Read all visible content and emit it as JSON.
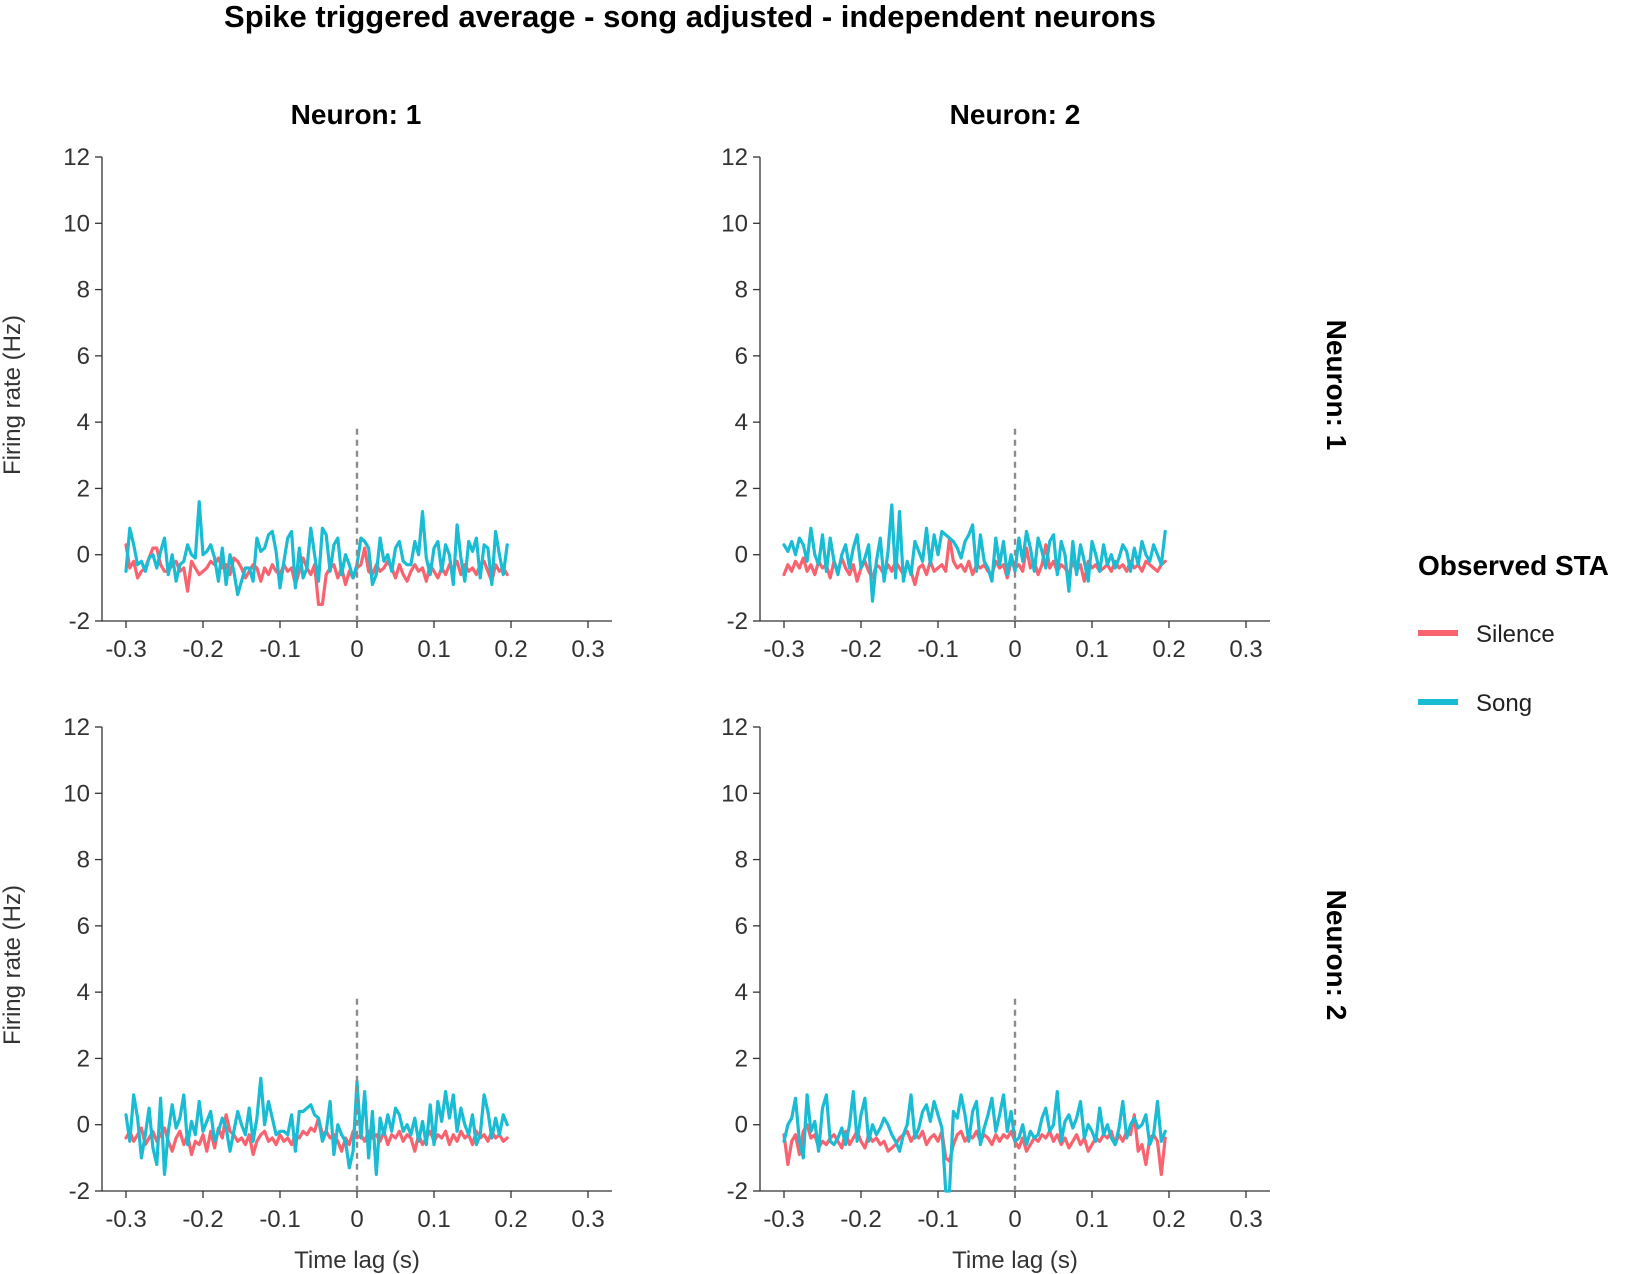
{
  "title": "Spike triggered average - song adjusted - independent neurons",
  "column_titles": [
    "Neuron: 1",
    "Neuron: 2"
  ],
  "row_strips": [
    "Neuron: 1",
    "Neuron: 2"
  ],
  "x_axis_label": "Time lag (s)",
  "y_axis_label": "Firing rate (Hz)",
  "x_tick_labels": [
    "-0.3",
    "-0.2",
    "-0.1",
    "0",
    "0.1",
    "0.2",
    "0.3"
  ],
  "y_tick_labels": [
    "-2",
    "0",
    "2",
    "4",
    "6",
    "8",
    "10",
    "12"
  ],
  "legend": {
    "title": "Observed STA",
    "items": [
      {
        "label": "Silence",
        "color": "#f8636f"
      },
      {
        "label": "Song",
        "color": "#19bcd3"
      }
    ]
  },
  "chart_data": {
    "type": "line",
    "layout": "2x2 facet grid",
    "xlim": [
      -0.3,
      0.3
    ],
    "ylim": [
      -2,
      12
    ],
    "x_ticks": [
      -0.3,
      -0.2,
      -0.1,
      0,
      0.1,
      0.2,
      0.3
    ],
    "y_ticks": [
      -2,
      0,
      2,
      4,
      6,
      8,
      10,
      12
    ],
    "reference_line": {
      "x": 0,
      "y_range": [
        -2,
        3.8
      ],
      "style": "dashed",
      "color": "#8c8c8c"
    },
    "grid": false,
    "legend_position": "right",
    "x_step": 0.005,
    "x_start": -0.3,
    "panels": [
      {
        "row": "Neuron: 1",
        "column": "Neuron: 1",
        "series": [
          {
            "name": "Silence",
            "color": "#f8636f",
            "values": [
              0.3,
              -0.4,
              -0.2,
              -0.7,
              -0.5,
              -0.4,
              -0.1,
              0.2,
              0.2,
              -0.3,
              -0.5,
              -0.5,
              -0.3,
              -0.2,
              -0.5,
              -0.4,
              -1.1,
              -0.2,
              -0.4,
              -0.6,
              -0.5,
              -0.4,
              -0.2,
              -0.3,
              -0.1,
              -0.4,
              -0.3,
              -0.6,
              -0.1,
              -0.2,
              -0.4,
              -0.7,
              -0.5,
              -0.3,
              -0.4,
              -0.8,
              -0.4,
              -0.6,
              -0.3,
              -0.5,
              -0.6,
              -0.3,
              -0.5,
              -0.4,
              -0.9,
              -0.5,
              -0.1,
              -0.4,
              -0.6,
              -0.3,
              -1.5,
              -1.5,
              -0.6,
              -0.4,
              -0.3,
              -0.7,
              -0.4,
              -0.9,
              -0.5,
              -0.7,
              -0.4,
              -0.3,
              0.2,
              -0.5,
              -0.6,
              -0.3,
              -0.5,
              -0.4,
              -0.2,
              -0.4,
              -0.7,
              -0.3,
              -0.6,
              -0.8,
              -0.5,
              -0.3,
              -0.5,
              -0.4,
              -0.8,
              -0.3,
              -0.5,
              -0.7,
              -0.4,
              -0.6,
              -0.3,
              -0.4,
              -0.2,
              -0.6,
              -0.3,
              -0.5,
              -0.4,
              -0.6,
              -0.3,
              -0.2,
              -0.5,
              -0.8,
              -0.3,
              -0.5,
              -0.4,
              -0.6
            ]
          },
          {
            "name": "Song",
            "color": "#19bcd3",
            "values": [
              -0.5,
              0.8,
              0.3,
              -0.3,
              -0.2,
              -0.5,
              -0.1,
              0.0,
              -0.4,
              0.1,
              0.5,
              -0.6,
              0.0,
              -0.8,
              -0.3,
              -0.2,
              0.3,
              0.0,
              -0.1,
              1.6,
              0.0,
              0.1,
              0.3,
              -0.1,
              -0.8,
              0.2,
              -0.9,
              0.0,
              -0.5,
              -1.2,
              -0.8,
              -0.4,
              -0.4,
              -0.8,
              0.5,
              0.1,
              0.2,
              0.6,
              0.7,
              0.1,
              -1.0,
              -0.2,
              0.5,
              0.7,
              -1.0,
              0.2,
              -0.7,
              -0.4,
              0.8,
              0.0,
              -0.8,
              0.8,
              0.6,
              -0.5,
              0.3,
              0.5,
              -0.6,
              0.0,
              -0.3,
              -0.7,
              -0.3,
              0.5,
              0.4,
              0.2,
              -0.9,
              -0.6,
              0.5,
              -0.2,
              0.0,
              -0.5,
              0.2,
              0.4,
              -0.2,
              -0.3,
              -0.3,
              0.4,
              0.0,
              1.3,
              -0.1,
              -0.6,
              0.2,
              0.4,
              -0.5,
              0.3,
              0.0,
              -0.9,
              0.9,
              -0.1,
              -0.8,
              0.4,
              0.1,
              0.5,
              -0.7,
              0.3,
              0.2,
              -0.9,
              0.7,
              0.0,
              -0.6,
              0.3
            ]
          }
        ]
      },
      {
        "row": "Neuron: 1",
        "column": "Neuron: 2",
        "series": [
          {
            "name": "Silence",
            "color": "#f8636f",
            "values": [
              -0.6,
              -0.3,
              -0.5,
              -0.2,
              -0.4,
              -0.1,
              -0.5,
              -0.3,
              -0.6,
              -0.2,
              -0.4,
              -0.3,
              -0.7,
              -0.2,
              -0.5,
              -0.1,
              -0.4,
              -0.6,
              -0.3,
              -0.8,
              -0.4,
              -0.2,
              -0.5,
              -0.7,
              -0.3,
              -0.4,
              -0.6,
              -0.3,
              -0.5,
              -0.2,
              -0.4,
              -0.6,
              -0.3,
              -0.5,
              -0.9,
              -0.4,
              -0.3,
              -0.6,
              -0.2,
              -0.5,
              -0.4,
              -0.3,
              -0.5,
              0.5,
              -0.2,
              -0.4,
              -0.3,
              -0.5,
              -0.2,
              -0.6,
              -0.3,
              -0.4,
              -0.3,
              -0.5,
              -0.6,
              -0.2,
              -0.4,
              -0.3,
              -0.7,
              -0.2,
              -0.4,
              -0.3,
              -0.5,
              0.2,
              -0.4,
              -0.2,
              -0.6,
              -0.3,
              0.3,
              -0.4,
              -0.2,
              -0.5,
              -0.3,
              -0.4,
              -0.6,
              -0.2,
              -0.5,
              -0.3,
              -0.8,
              -0.2,
              -0.4,
              -0.3,
              -0.5,
              -0.4,
              -0.3,
              -0.5,
              -0.2,
              -0.4,
              -0.3,
              -0.5,
              -0.2,
              -0.4,
              -0.3,
              -0.5,
              -0.2,
              -0.3,
              -0.4,
              -0.5,
              -0.3,
              -0.2
            ]
          },
          {
            "name": "Song",
            "color": "#19bcd3",
            "values": [
              0.3,
              0.1,
              0.4,
              0.0,
              0.5,
              0.3,
              -0.2,
              0.8,
              0.0,
              -0.3,
              0.6,
              -0.5,
              0.5,
              -0.2,
              -0.6,
              0.0,
              0.3,
              -0.4,
              0.2,
              0.6,
              -0.4,
              -0.1,
              0.3,
              -1.4,
              -0.2,
              0.5,
              -0.8,
              0.1,
              1.5,
              -0.7,
              1.3,
              -0.8,
              -0.2,
              -0.6,
              0.4,
              0.1,
              -0.2,
              0.8,
              -0.3,
              0.6,
              0.0,
              0.7,
              0.6,
              0.5,
              0.4,
              0.2,
              -0.1,
              0.4,
              0.6,
              0.9,
              -0.5,
              0.6,
              -0.2,
              -0.4,
              -0.8,
              0.5,
              -0.3,
              0.4,
              -0.6,
              0.0,
              -0.5,
              0.5,
              -0.2,
              0.7,
              0.2,
              -0.5,
              0.5,
              0.1,
              -0.4,
              0.4,
              0.6,
              -0.6,
              0.4,
              0.0,
              -1.1,
              0.4,
              -0.6,
              0.3,
              -0.2,
              -0.8,
              0.4,
              0.0,
              -0.5,
              0.3,
              -0.3,
              0.0,
              -0.4,
              -0.1,
              0.3,
              0.1,
              -0.5,
              0.2,
              -0.3,
              0.4,
              0.0,
              -0.2,
              0.3,
              0.0,
              -0.3,
              0.7
            ]
          }
        ]
      },
      {
        "row": "Neuron: 2",
        "column": "Neuron: 1",
        "series": [
          {
            "name": "Silence",
            "color": "#f8636f",
            "values": [
              -0.4,
              -0.2,
              -0.5,
              -0.3,
              -0.1,
              -0.6,
              -0.4,
              -0.2,
              -0.5,
              -0.3,
              -0.1,
              -0.5,
              -0.8,
              -0.4,
              -0.2,
              -0.6,
              -0.3,
              -0.9,
              -0.5,
              -0.6,
              -0.3,
              -0.8,
              -0.2,
              -0.7,
              -0.1,
              -0.4,
              0.3,
              -0.2,
              -0.3,
              -0.5,
              -0.4,
              -0.6,
              -0.3,
              -0.9,
              -0.5,
              -0.3,
              -0.2,
              -0.5,
              -0.4,
              -0.6,
              -0.3,
              -0.5,
              -0.4,
              -0.6,
              -0.3,
              -0.4,
              -0.2,
              -0.3,
              -0.1,
              -0.2,
              0.2,
              -0.3,
              -0.2,
              -0.4,
              -0.3,
              -0.5,
              -0.8,
              -0.4,
              -0.6,
              -0.2,
              -0.4,
              -0.3,
              -0.5,
              -0.2,
              -0.4,
              -0.3,
              -0.5,
              -0.2,
              -0.6,
              -0.3,
              -0.4,
              -0.2,
              -0.5,
              -0.3,
              -0.4,
              -0.8,
              -0.3,
              -0.6,
              -0.4,
              -0.2,
              -0.5,
              -0.3,
              -0.4,
              -0.2,
              -0.6,
              -0.3,
              -0.5,
              -0.2,
              -0.4,
              -0.3,
              -0.6,
              -0.2,
              -0.4,
              -0.3,
              -0.5,
              -0.2,
              -0.4,
              -0.3,
              -0.5,
              -0.4
            ]
          },
          {
            "name": "Song",
            "color": "#19bcd3",
            "values": [
              0.3,
              -0.5,
              0.9,
              0.2,
              -1.0,
              -0.3,
              0.5,
              -0.7,
              -1.2,
              0.8,
              -1.5,
              -0.2,
              0.6,
              -0.1,
              0.2,
              0.9,
              -0.6,
              0.1,
              -0.3,
              0.7,
              -0.2,
              0.1,
              0.4,
              -0.5,
              -0.2,
              0.2,
              -0.1,
              -0.8,
              -0.2,
              0.4,
              0.0,
              -0.3,
              0.5,
              -0.5,
              0.2,
              1.4,
              0.0,
              0.7,
              0.2,
              -0.3,
              -0.2,
              -0.2,
              -0.3,
              0.3,
              -0.8,
              0.4,
              0.4,
              0.5,
              0.6,
              0.3,
              0.2,
              -0.5,
              -0.2,
              0.7,
              -0.9,
              0.0,
              -0.3,
              -0.5,
              -1.3,
              -0.8,
              1.3,
              -0.4,
              1.0,
              -1.0,
              0.4,
              -1.5,
              0.2,
              -0.3,
              0.3,
              -0.2,
              0.5,
              0.3,
              -0.2,
              0.0,
              -0.3,
              0.2,
              -0.5,
              0.1,
              -0.6,
              0.6,
              -0.6,
              0.7,
              0.1,
              1.0,
              0.2,
              0.9,
              -0.2,
              0.5,
              0.0,
              -0.3,
              0.3,
              -0.6,
              -0.3,
              0.9,
              0.4,
              -0.4,
              0.2,
              -0.3,
              0.3,
              0.0
            ]
          }
        ]
      },
      {
        "row": "Neuron: 2",
        "column": "Neuron: 2",
        "series": [
          {
            "name": "Silence",
            "color": "#f8636f",
            "values": [
              -0.3,
              -1.2,
              -0.5,
              -0.3,
              -0.9,
              -0.2,
              0.0,
              -0.4,
              -0.3,
              -0.7,
              -0.5,
              -0.6,
              -0.4,
              -0.3,
              -0.5,
              -0.7,
              -0.2,
              -0.6,
              -0.4,
              -0.2,
              -0.5,
              -0.7,
              -0.3,
              -0.5,
              -0.4,
              -0.6,
              -0.5,
              -0.8,
              -0.7,
              -0.6,
              -0.4,
              -0.3,
              -0.2,
              -0.5,
              -0.3,
              -0.4,
              -0.2,
              -0.6,
              -0.4,
              -0.3,
              -0.5,
              -0.2,
              -1.0,
              -1.1,
              -0.6,
              -0.3,
              -0.2,
              -0.5,
              -0.3,
              -0.4,
              -0.2,
              -0.5,
              -0.3,
              -0.4,
              -0.6,
              -0.3,
              -0.5,
              -0.3,
              -0.4,
              -0.2,
              -0.5,
              -0.7,
              -0.4,
              -0.8,
              -0.6,
              -0.4,
              -0.5,
              -0.3,
              -0.4,
              -0.2,
              -0.5,
              -0.3,
              -0.6,
              -0.4,
              -0.7,
              -0.5,
              -0.3,
              -0.6,
              -0.4,
              -0.8,
              -0.6,
              -0.4,
              -0.5,
              -0.3,
              -0.4,
              -0.2,
              -0.6,
              -0.3,
              -0.5,
              -0.2,
              -0.3,
              0.3,
              -0.8,
              -0.6,
              -1.2,
              -0.4,
              -0.3,
              -0.5,
              -1.5,
              -0.4
            ]
          },
          {
            "name": "Song",
            "color": "#19bcd3",
            "values": [
              -0.5,
              0.0,
              0.2,
              0.8,
              -0.5,
              -1.0,
              0.9,
              -0.2,
              0.1,
              -0.8,
              0.5,
              0.9,
              -0.5,
              -0.6,
              -0.4,
              -0.1,
              -0.6,
              0.0,
              1.0,
              -0.5,
              0.3,
              0.8,
              -0.5,
              0.0,
              -0.3,
              -0.1,
              0.2,
              0.0,
              -0.3,
              -0.5,
              -0.8,
              -0.3,
              0.0,
              0.9,
              -0.4,
              -0.1,
              0.4,
              0.6,
              0.1,
              0.7,
              0.3,
              -0.1,
              -2.0,
              -2.0,
              0.4,
              0.2,
              0.9,
              0.3,
              -0.5,
              0.4,
              0.7,
              -0.6,
              -0.1,
              0.3,
              0.8,
              -0.2,
              0.3,
              0.9,
              -0.2,
              0.4,
              -0.5,
              -0.4,
              0.0,
              -0.6,
              -0.2,
              -0.4,
              -0.3,
              0.2,
              0.5,
              -0.2,
              0.0,
              1.0,
              -0.5,
              0.1,
              0.3,
              -0.1,
              0.2,
              0.7,
              -0.4,
              0.0,
              -0.2,
              -0.5,
              0.5,
              -0.3,
              0.0,
              -0.4,
              -0.6,
              -0.1,
              0.7,
              -0.4,
              0.0,
              0.2,
              -0.1,
              0.0,
              0.3,
              -0.6,
              -0.3,
              0.7,
              -0.5,
              -0.2
            ]
          }
        ]
      }
    ]
  }
}
